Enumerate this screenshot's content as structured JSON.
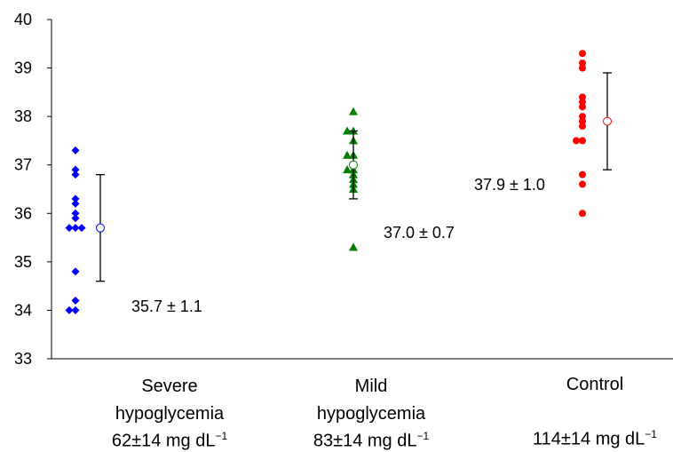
{
  "chart_data": {
    "type": "scatter",
    "ylim": [
      33,
      40
    ],
    "yticks": [
      33,
      34,
      35,
      36,
      37,
      38,
      39,
      40
    ],
    "grid": false,
    "categories": [
      {
        "name_line1": "Severe",
        "name_line2": "hypoglycemia",
        "glucose": "62±14 mg dL",
        "unit_exp": "−1",
        "color": "#0000ff",
        "marker": "diamond",
        "values": [
          37.3,
          36.9,
          36.8,
          36.3,
          36.2,
          36.0,
          35.9,
          35.7,
          35.7,
          35.7,
          34.8,
          34.2,
          34.0,
          34.0
        ],
        "mean": 35.7,
        "sd": 1.1,
        "annotation": "35.7 ± 1.1"
      },
      {
        "name_line1": "Mild",
        "name_line2": "hypoglycemia",
        "glucose": "83±14 mg dL",
        "unit_exp": "−1",
        "color": "#008000",
        "marker": "triangle",
        "values": [
          38.1,
          37.7,
          37.7,
          37.5,
          37.2,
          37.2,
          36.9,
          36.9,
          36.8,
          36.7,
          36.6,
          36.5,
          35.3
        ],
        "mean": 37.0,
        "sd": 0.7,
        "annotation": "37.0 ± 0.7"
      },
      {
        "name_line1": "Control",
        "name_line2": "",
        "glucose": "114±14 mg dL",
        "unit_exp": "−1",
        "color": "#ff0000",
        "marker": "circle",
        "values": [
          39.3,
          39.1,
          39.0,
          38.4,
          38.3,
          38.2,
          38.0,
          37.9,
          37.8,
          37.5,
          37.5,
          36.8,
          36.6,
          36.0
        ],
        "mean": 37.9,
        "sd": 1.0,
        "annotation": "37.9 ± 1.0"
      }
    ]
  }
}
